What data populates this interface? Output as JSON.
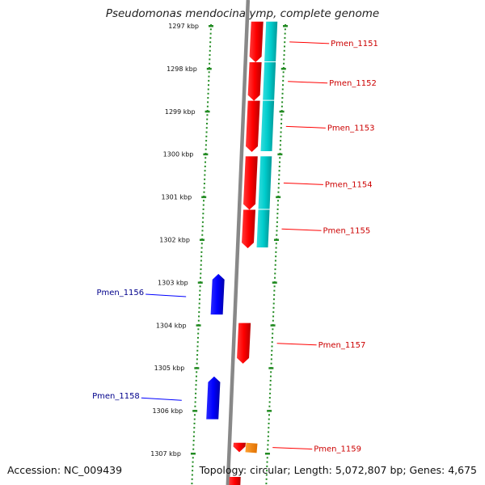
{
  "title": "Pseudomonas mendocina ymp, complete genome",
  "accession": "Accession: NC_009439",
  "summary": "Topology: circular; Length: 5,072,807 bp; Genes: 4,675",
  "colors": {
    "forward_gene": "#ff0000",
    "reverse_gene": "#0000ff",
    "cds_track": "#00cccc",
    "rna_gene": "#ff8c00",
    "backbone": "#888888",
    "tick": "#228b22",
    "forward_label": "#cc0000",
    "reverse_label": "#00008b"
  },
  "ticks": [
    {
      "kbp": 1297,
      "label": "1297 kbp"
    },
    {
      "kbp": 1298,
      "label": "1298 kbp"
    },
    {
      "kbp": 1299,
      "label": "1299 kbp"
    },
    {
      "kbp": 1300,
      "label": "1300 kbp"
    },
    {
      "kbp": 1301,
      "label": "1301 kbp"
    },
    {
      "kbp": 1302,
      "label": "1302 kbp"
    },
    {
      "kbp": 1303,
      "label": "1303 kbp"
    },
    {
      "kbp": 1304,
      "label": "1304 kbp"
    },
    {
      "kbp": 1305,
      "label": "1305 kbp"
    },
    {
      "kbp": 1306,
      "label": "1306 kbp"
    },
    {
      "kbp": 1307,
      "label": "1307 kbp"
    }
  ],
  "genes": [
    {
      "name": "Pmen_1151",
      "strand": "+",
      "start_kbp": 1296.9,
      "end_kbp": 1297.85
    },
    {
      "name": "Pmen_1152",
      "strand": "+",
      "start_kbp": 1297.85,
      "end_kbp": 1298.75
    },
    {
      "name": "Pmen_1153",
      "strand": "+",
      "start_kbp": 1298.75,
      "end_kbp": 1299.95
    },
    {
      "name": "Pmen_1154",
      "strand": "+",
      "start_kbp": 1300.05,
      "end_kbp": 1301.3
    },
    {
      "name": "Pmen_1155",
      "strand": "+",
      "start_kbp": 1301.3,
      "end_kbp": 1302.2
    },
    {
      "name": "Pmen_1156",
      "strand": "-",
      "start_kbp": 1302.8,
      "end_kbp": 1303.75
    },
    {
      "name": "Pmen_1157",
      "strand": "+",
      "start_kbp": 1303.95,
      "end_kbp": 1304.9
    },
    {
      "name": "Pmen_1158",
      "strand": "-",
      "start_kbp": 1305.2,
      "end_kbp": 1306.2
    },
    {
      "name": "Pmen_1159",
      "strand": "+",
      "start_kbp": 1306.75,
      "end_kbp": 1306.97
    }
  ]
}
